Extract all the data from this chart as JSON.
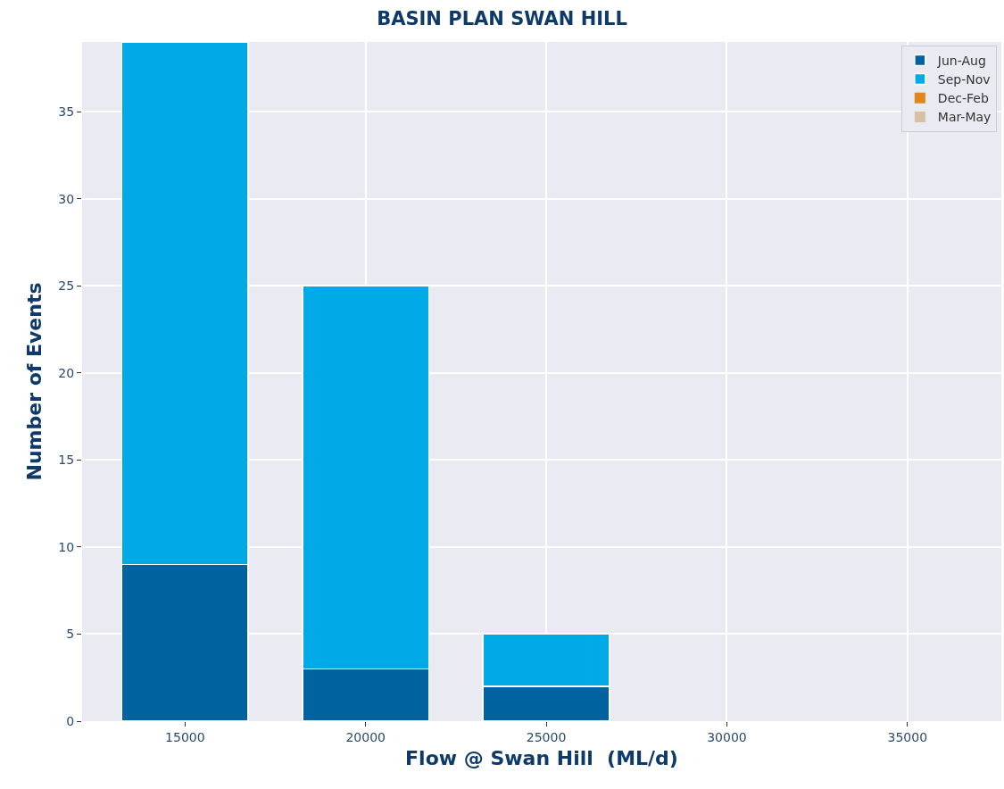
{
  "chart_data": {
    "type": "bar",
    "title": "BASIN PLAN SWAN HILL",
    "xlabel": "Flow @ Swan Hill  (ML/d)",
    "ylabel": "Number of Events",
    "x": [
      15000,
      20000,
      25000,
      30000,
      35000
    ],
    "stacked": true,
    "series": [
      {
        "name": "Jun-Aug",
        "color": "#00629f",
        "values": [
          9,
          3,
          2,
          0,
          0
        ]
      },
      {
        "name": "Sep-Nov",
        "color": "#00aae6",
        "values": [
          30,
          22,
          3,
          0,
          0
        ]
      },
      {
        "name": "Dec-Feb",
        "color": "#e0861a",
        "values": [
          0,
          0,
          0,
          0,
          0
        ]
      },
      {
        "name": "Mar-May",
        "color": "#d6c0a6",
        "values": [
          0,
          0,
          0,
          0,
          0
        ]
      }
    ],
    "xlim": [
      12150,
      37600
    ],
    "xticks": [
      15000,
      20000,
      25000,
      30000,
      35000
    ],
    "ylim": [
      0,
      39
    ],
    "yticks": [
      0,
      5,
      10,
      15,
      20,
      25,
      30,
      35
    ],
    "grid": true,
    "legend": "top right"
  }
}
